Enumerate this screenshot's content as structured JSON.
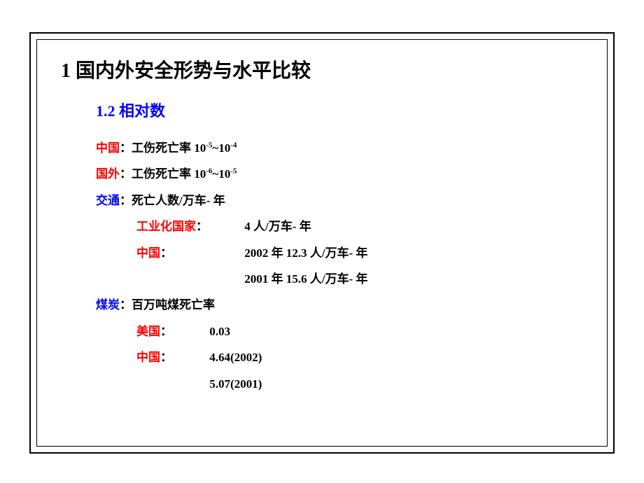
{
  "title": "1 国内外安全形势与水平比较",
  "subtitle": "1.2 相对数",
  "colors": {
    "title": "#000000",
    "subtitle": "#0000ff",
    "label_red": "#ff0000",
    "label_blue": "#0000ff",
    "value": "#000000",
    "frame": "#000000",
    "background": "#ffffff"
  },
  "fonts": {
    "title_size_pt": 21,
    "subtitle_size_pt": 17,
    "body_size_pt": 13,
    "family": "SimSun"
  },
  "china": {
    "label": "中国",
    "sep": "：",
    "metric": "工伤死亡率 ",
    "base": "10",
    "exp1": "-5",
    "tilde": "~",
    "exp2": "-4"
  },
  "abroad": {
    "label": "国外",
    "sep": "：",
    "metric": "工伤死亡率 ",
    "base": "10",
    "exp1": "-6",
    "tilde": "~",
    "exp2": "-5"
  },
  "traffic": {
    "label": "交通",
    "sep": "：",
    "metric": "死亡人数/万车-  年",
    "industrial_label": "工业化国家",
    "industrial_sep": "：",
    "industrial_value": "4 人/万车-  年",
    "china_label": "中国",
    "china_sep": "：",
    "china_2002": "2002 年 12.3 人/万车-  年",
    "china_2001": "2001 年 15.6 人/万车-  年"
  },
  "coal": {
    "label": "煤炭",
    "sep": "：",
    "metric": "百万吨煤死亡率",
    "usa_label": "美国",
    "usa_sep": "：",
    "usa_value": "0.03",
    "china_label": "中国",
    "china_sep": "：",
    "china_2002": "4.64(2002)",
    "china_2001": "5.07(2001)"
  }
}
